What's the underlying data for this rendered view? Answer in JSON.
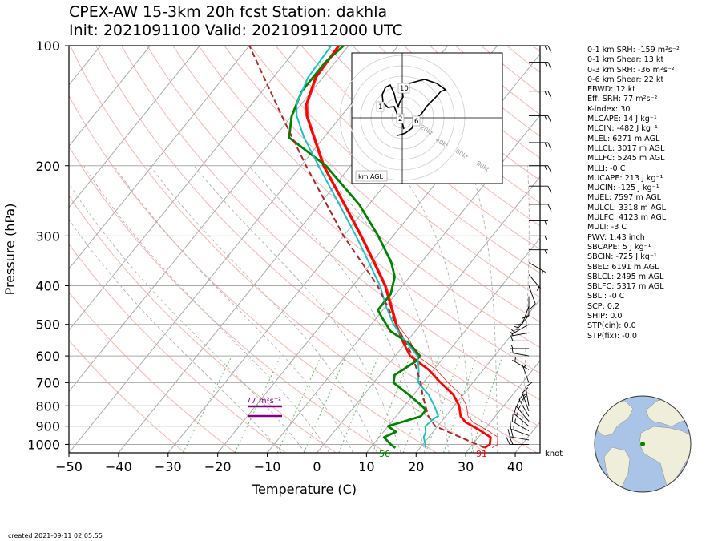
{
  "title": {
    "line1": "CPEX-AW 15-3km  20h fcst  Station: dakhla",
    "line2": "Init: 2021091100  Valid: 202109112000 UTC"
  },
  "created": "created 2021-09-11 02:05:55",
  "hodograph": {
    "label": "km AGL",
    "height_labels": [
      "10",
      "1",
      "2",
      "6"
    ],
    "ring_labels": [
      "20kt",
      "40kt",
      "60kt",
      "80kt"
    ]
  },
  "barb_unit": "knot",
  "params": [
    "0-1 km SRH: -159 m²s⁻²",
    "0-1 km Shear: 13 kt",
    "0-3 km SRH: -36 m²s⁻²",
    "0-6 km Shear: 22 kt",
    "EBWD: 12 kt",
    "Eff. SRH: 77 m²s⁻²",
    "K-index: 30",
    "MLCAPE: 14 J kg⁻¹",
    "MLCIN: -482 J kg⁻¹",
    "MLEL: 6271 m AGL",
    "MLLCL: 3017 m AGL",
    "MLLFC: 5245 m AGL",
    "MLLI: -0 C",
    "MUCAPE: 213 J kg⁻¹",
    "MUCIN: -125 J kg⁻¹",
    "MUEL: 7597 m AGL",
    "MULCL: 3318 m AGL",
    "MULFC: 4123 m AGL",
    "MULI: -3 C",
    "PWV: 1.43 inch",
    "SBCAPE: 5 J kg⁻¹",
    "SBCIN: -725 J kg⁻¹",
    "SBEL: 6191 m AGL",
    "SBLCL: 2495 m AGL",
    "SBLFC: 5317 m AGL",
    "SBLI: -0 C",
    "SCP: 0.2",
    "SHIP: 0.0",
    "STP(cin): 0.0",
    "STP(fix): -0.0"
  ],
  "colors": {
    "temperature": "#ff0000",
    "dewpoint": "#008000",
    "wetbulb": "#20c0c0",
    "parcel": "#a52a2a",
    "srh_marker": "#800080",
    "dry_adiabat": "#f4b6b0",
    "moist_adiabat": "#b0b0b0",
    "mixing_ratio": "#66bb66"
  },
  "chart_data": {
    "type": "line",
    "subtype": "skew-T log-p",
    "xlabel": "Temperature (C)",
    "ylabel": "Pressure (hPa)",
    "xlim": [
      -50,
      45
    ],
    "ylim": [
      1050,
      100
    ],
    "yscale": "log",
    "skew_deg_per_log10p": 65,
    "x_ticks": [
      -50,
      -40,
      -30,
      -20,
      -10,
      0,
      10,
      20,
      30,
      40
    ],
    "y_ticks": [
      100,
      200,
      300,
      400,
      500,
      600,
      700,
      800,
      900,
      1000
    ],
    "surface_T_label": "91",
    "surface_Td_label": "56",
    "effective_srh_label": "77 m²s⁻²",
    "effective_layer_hPa": [
      850,
      805
    ],
    "series": [
      {
        "key": "temperature",
        "points": [
          [
            1020,
            33
          ],
          [
            1000,
            33.5
          ],
          [
            960,
            32.5
          ],
          [
            920,
            29
          ],
          [
            880,
            25
          ],
          [
            850,
            23
          ],
          [
            800,
            21
          ],
          [
            750,
            18
          ],
          [
            700,
            13.5
          ],
          [
            650,
            9
          ],
          [
            600,
            3
          ],
          [
            550,
            -1
          ],
          [
            500,
            -5
          ],
          [
            450,
            -9
          ],
          [
            400,
            -13.5
          ],
          [
            350,
            -19.5
          ],
          [
            300,
            -26.5
          ],
          [
            250,
            -35
          ],
          [
            200,
            -45.5
          ],
          [
            170,
            -52
          ],
          [
            150,
            -57
          ],
          [
            140,
            -59
          ],
          [
            120,
            -61.5
          ],
          [
            100,
            -62
          ]
        ]
      },
      {
        "key": "dewpoint",
        "points": [
          [
            1020,
            15
          ],
          [
            1000,
            13.5
          ],
          [
            960,
            11
          ],
          [
            930,
            12.5
          ],
          [
            900,
            10
          ],
          [
            860,
            14
          ],
          [
            850,
            15
          ],
          [
            820,
            15
          ],
          [
            800,
            13.5
          ],
          [
            750,
            9
          ],
          [
            700,
            4
          ],
          [
            670,
            3
          ],
          [
            620,
            5
          ],
          [
            600,
            5
          ],
          [
            560,
            1
          ],
          [
            520,
            -5
          ],
          [
            480,
            -9
          ],
          [
            460,
            -11
          ],
          [
            420,
            -11
          ],
          [
            380,
            -13
          ],
          [
            350,
            -16
          ],
          [
            300,
            -23
          ],
          [
            250,
            -32
          ],
          [
            200,
            -45
          ],
          [
            170,
            -57
          ],
          [
            150,
            -60
          ],
          [
            130,
            -62
          ],
          [
            110,
            -62
          ],
          [
            100,
            -61
          ]
        ]
      },
      {
        "key": "wetbulb",
        "points": [
          [
            1020,
            21
          ],
          [
            1000,
            20.5
          ],
          [
            960,
            19
          ],
          [
            930,
            18.5
          ],
          [
            900,
            17.5
          ],
          [
            860,
            18
          ],
          [
            850,
            18.5
          ],
          [
            800,
            16
          ],
          [
            750,
            13
          ],
          [
            700,
            9
          ],
          [
            650,
            7
          ],
          [
            600,
            4.5
          ],
          [
            550,
            -0.5
          ],
          [
            500,
            -5.5
          ],
          [
            450,
            -10
          ],
          [
            400,
            -14.5
          ],
          [
            350,
            -20.5
          ],
          [
            300,
            -27.5
          ],
          [
            250,
            -36
          ],
          [
            200,
            -46.5
          ],
          [
            170,
            -54
          ],
          [
            150,
            -59
          ],
          [
            140,
            -61
          ],
          [
            120,
            -63
          ],
          [
            100,
            -63.5
          ]
        ]
      },
      {
        "key": "parcel",
        "points": [
          [
            1020,
            33
          ],
          [
            900,
            19.5
          ],
          [
            850,
            16.5
          ],
          [
            800,
            14.2
          ],
          [
            750,
            11.8
          ],
          [
            700,
            9.5
          ],
          [
            600,
            3.5
          ],
          [
            500,
            -5
          ],
          [
            400,
            -15
          ],
          [
            300,
            -30
          ],
          [
            200,
            -49
          ],
          [
            150,
            -62
          ],
          [
            100,
            -80
          ]
        ]
      }
    ],
    "wind_barbs": [
      [
        1000,
        270,
        20
      ],
      [
        975,
        280,
        20
      ],
      [
        950,
        290,
        15
      ],
      [
        925,
        300,
        15
      ],
      [
        900,
        310,
        15
      ],
      [
        875,
        320,
        15
      ],
      [
        850,
        330,
        20
      ],
      [
        825,
        340,
        15
      ],
      [
        800,
        350,
        10
      ],
      [
        700,
        340,
        5
      ],
      [
        650,
        300,
        5
      ],
      [
        600,
        280,
        5
      ],
      [
        575,
        270,
        5
      ],
      [
        550,
        270,
        5
      ],
      [
        525,
        260,
        5
      ],
      [
        500,
        240,
        5
      ],
      [
        475,
        220,
        5
      ],
      [
        450,
        200,
        10
      ],
      [
        425,
        180,
        10
      ],
      [
        400,
        160,
        10
      ],
      [
        375,
        140,
        5
      ],
      [
        350,
        120,
        5
      ],
      [
        325,
        90,
        5
      ],
      [
        300,
        90,
        5
      ],
      [
        275,
        90,
        5
      ],
      [
        250,
        90,
        10
      ],
      [
        225,
        90,
        10
      ],
      [
        200,
        90,
        15
      ],
      [
        175,
        90,
        15
      ],
      [
        150,
        90,
        15
      ],
      [
        130,
        90,
        15
      ],
      [
        110,
        90,
        15
      ],
      [
        100,
        90,
        15
      ]
    ]
  }
}
